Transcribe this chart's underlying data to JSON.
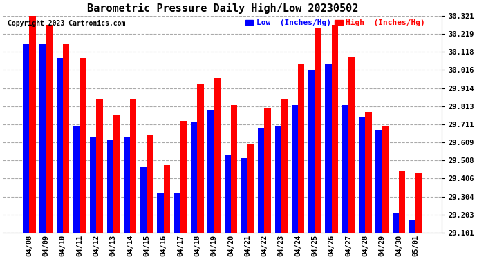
{
  "title": "Barometric Pressure Daily High/Low 20230502",
  "copyright": "Copyright 2023 Cartronics.com",
  "legend_low": "Low  (Inches/Hg)",
  "legend_high": "High  (Inches/Hg)",
  "dates": [
    "04/08",
    "04/09",
    "04/10",
    "04/11",
    "04/12",
    "04/13",
    "04/14",
    "04/15",
    "04/16",
    "04/17",
    "04/18",
    "04/19",
    "04/20",
    "04/21",
    "04/22",
    "04/23",
    "04/24",
    "04/25",
    "04/26",
    "04/27",
    "04/28",
    "04/29",
    "04/30",
    "05/01"
  ],
  "high_values": [
    30.321,
    30.27,
    30.16,
    30.082,
    29.852,
    29.76,
    29.852,
    29.65,
    29.48,
    29.73,
    29.94,
    29.97,
    29.82,
    29.6,
    29.8,
    29.85,
    30.05,
    30.25,
    30.27,
    30.09,
    29.78,
    29.7,
    29.45,
    29.44
  ],
  "low_values": [
    30.16,
    30.16,
    30.082,
    29.7,
    29.64,
    29.625,
    29.64,
    29.47,
    29.32,
    29.32,
    29.72,
    29.79,
    29.54,
    29.52,
    29.69,
    29.7,
    29.82,
    30.016,
    30.05,
    29.82,
    29.75,
    29.68,
    29.21,
    29.17
  ],
  "ymin": 29.101,
  "ymax": 30.321,
  "yticks": [
    29.101,
    29.203,
    29.304,
    29.406,
    29.508,
    29.609,
    29.711,
    29.813,
    29.914,
    30.016,
    30.118,
    30.219,
    30.321
  ],
  "bar_width": 0.38,
  "high_color": "#ff0000",
  "low_color": "#0000ff",
  "bg_color": "#ffffff",
  "grid_color": "#aaaaaa",
  "title_fontsize": 11,
  "tick_fontsize": 7.5,
  "legend_fontsize": 8
}
